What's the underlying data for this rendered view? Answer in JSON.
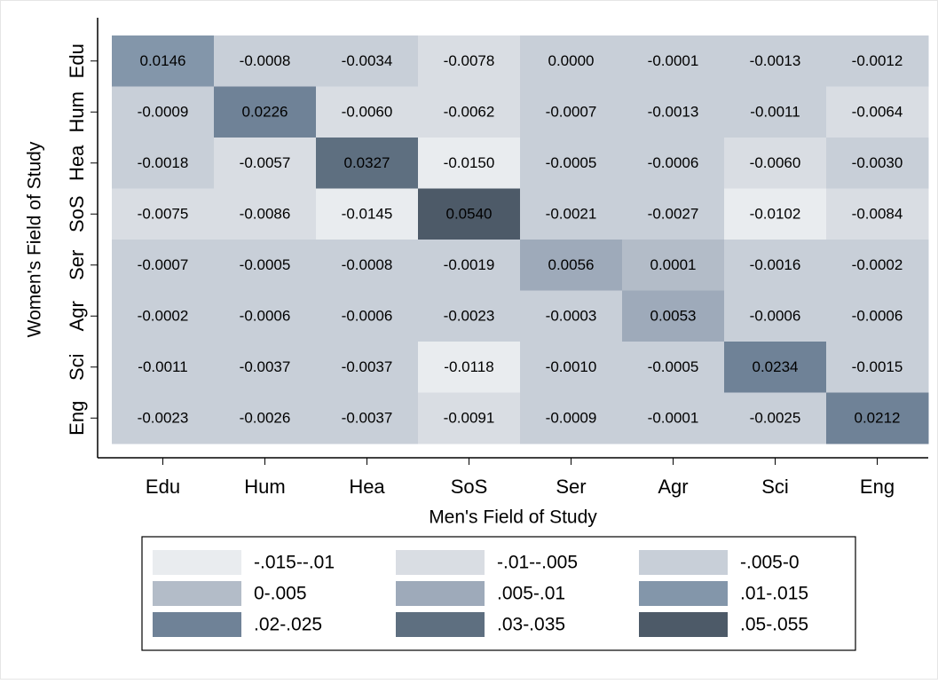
{
  "chart_data": {
    "type": "heatmap",
    "x_label": "Men's Field of Study",
    "y_label": "Women's Field of Study",
    "x_categories": [
      "Edu",
      "Hum",
      "Hea",
      "SoS",
      "Ser",
      "Agr",
      "Sci",
      "Eng"
    ],
    "y_categories": [
      "Edu",
      "Hum",
      "Hea",
      "SoS",
      "Ser",
      "Agr",
      "Sci",
      "Eng"
    ],
    "values": [
      [
        0.0146,
        -0.0008,
        -0.0034,
        -0.0078,
        0.0,
        -0.0001,
        -0.0013,
        -0.0012
      ],
      [
        -0.0009,
        0.0226,
        -0.006,
        -0.0062,
        -0.0007,
        -0.0013,
        -0.0011,
        -0.0064
      ],
      [
        -0.0018,
        -0.0057,
        0.0327,
        -0.015,
        -0.0005,
        -0.0006,
        -0.006,
        -0.003
      ],
      [
        -0.0075,
        -0.0086,
        -0.0145,
        0.054,
        -0.0021,
        -0.0027,
        -0.0102,
        -0.0084
      ],
      [
        -0.0007,
        -0.0005,
        -0.0008,
        -0.0019,
        0.0056,
        0.0001,
        -0.0016,
        -0.0002
      ],
      [
        -0.0002,
        -0.0006,
        -0.0006,
        -0.0023,
        -0.0003,
        0.0053,
        -0.0006,
        -0.0006
      ],
      [
        -0.0011,
        -0.0037,
        -0.0037,
        -0.0118,
        -0.001,
        -0.0005,
        0.0234,
        -0.0015
      ],
      [
        -0.0023,
        -0.0026,
        -0.0037,
        -0.0091,
        -0.0009,
        -0.0001,
        -0.0025,
        0.0212
      ]
    ],
    "value_labels": [
      [
        "0.0146",
        "-0.0008",
        "-0.0034",
        "-0.0078",
        "0.0000",
        "-0.0001",
        "-0.0013",
        "-0.0012"
      ],
      [
        "-0.0009",
        "0.0226",
        "-0.0060",
        "-0.0062",
        "-0.0007",
        "-0.0013",
        "-0.0011",
        "-0.0064"
      ],
      [
        "-0.0018",
        "-0.0057",
        "0.0327",
        "-0.0150",
        "-0.0005",
        "-0.0006",
        "-0.0060",
        "-0.0030"
      ],
      [
        "-0.0075",
        "-0.0086",
        "-0.0145",
        "0.0540",
        "-0.0021",
        "-0.0027",
        "-0.0102",
        "-0.0084"
      ],
      [
        "-0.0007",
        "-0.0005",
        "-0.0008",
        "-0.0019",
        "0.0056",
        "0.0001",
        "-0.0016",
        "-0.0002"
      ],
      [
        "-0.0002",
        "-0.0006",
        "-0.0006",
        "-0.0023",
        "-0.0003",
        "0.0053",
        "-0.0006",
        "-0.0006"
      ],
      [
        "-0.0011",
        "-0.0037",
        "-0.0037",
        "-0.0118",
        "-0.0010",
        "-0.0005",
        "0.0234",
        "-0.0015"
      ],
      [
        "-0.0023",
        "-0.0026",
        "-0.0037",
        "-0.0091",
        "-0.0009",
        "-0.0001",
        "-0.0025",
        "0.0212"
      ]
    ],
    "legend": [
      {
        "label": "-.015--.01",
        "range": [
          -0.015,
          -0.01
        ],
        "color": "#e9ecef"
      },
      {
        "label": "-.01--.005",
        "range": [
          -0.01,
          -0.005
        ],
        "color": "#d9dde3"
      },
      {
        "label": "-.005-0",
        "range": [
          -0.005,
          0
        ],
        "color": "#c8cfd8"
      },
      {
        "label": "0-.005",
        "range": [
          0,
          0.005
        ],
        "color": "#b3bcc8"
      },
      {
        "label": ".005-.01",
        "range": [
          0.005,
          0.01
        ],
        "color": "#9eaaba"
      },
      {
        "label": ".01-.015",
        "range": [
          0.01,
          0.015
        ],
        "color": "#8396aa"
      },
      {
        "label": ".02-.025",
        "range": [
          0.02,
          0.025
        ],
        "color": "#6f8297"
      },
      {
        "label": ".03-.035",
        "range": [
          0.03,
          0.035
        ],
        "color": "#5e6f80"
      },
      {
        "label": ".05-.055",
        "range": [
          0.05,
          0.055
        ],
        "color": "#4d5a68"
      }
    ]
  }
}
